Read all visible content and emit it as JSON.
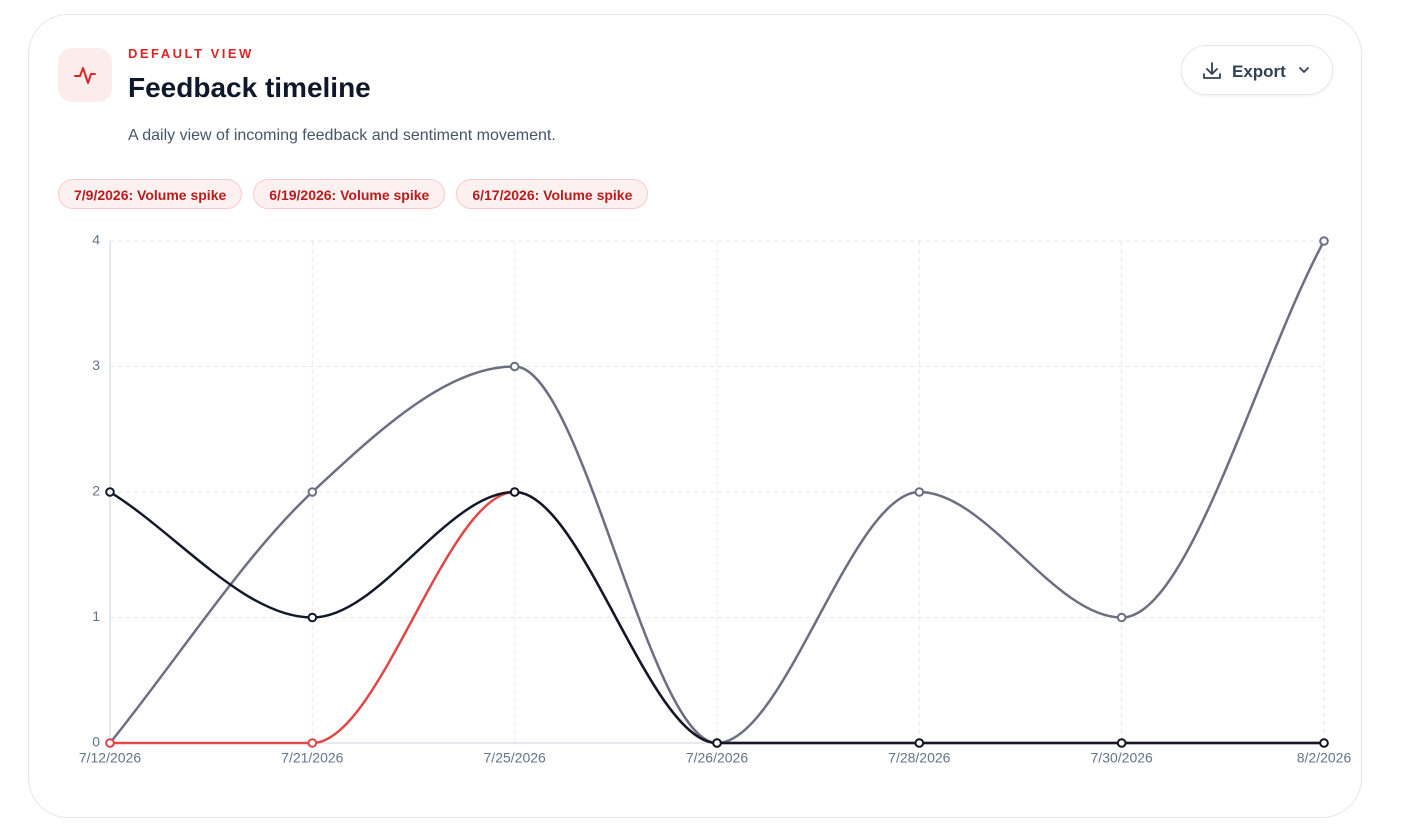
{
  "header": {
    "eyebrow": "DEFAULT VIEW",
    "title": "Feedback timeline",
    "subtitle": "A daily view of incoming feedback and sentiment movement.",
    "export_label": "Export"
  },
  "annotations": [
    "7/9/2026: Volume spike",
    "6/19/2026: Volume spike",
    "6/17/2026: Volume spike"
  ],
  "chart_data": {
    "type": "line",
    "categories": [
      "7/12/2026",
      "7/21/2026",
      "7/25/2026",
      "7/26/2026",
      "7/28/2026",
      "7/30/2026",
      "8/2/2026"
    ],
    "series": [
      {
        "color": "#6b6f80",
        "values": [
          0,
          2,
          3,
          0,
          2,
          1,
          4
        ]
      },
      {
        "color": "#e04848",
        "values": [
          0,
          0,
          2,
          0,
          0,
          0,
          0
        ]
      },
      {
        "color": "#111827",
        "values": [
          2,
          1,
          2,
          0,
          0,
          0,
          0
        ]
      }
    ],
    "ylim": [
      0,
      4
    ],
    "yticks": [
      0,
      1,
      2,
      3,
      4
    ],
    "grid": true
  }
}
